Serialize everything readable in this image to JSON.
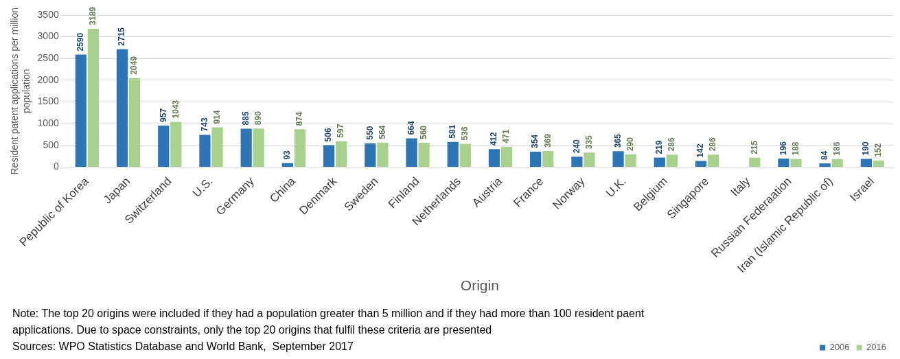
{
  "chart_data": {
    "type": "bar",
    "xlabel": "Origin",
    "ylabel": "Resident patent applications per million population",
    "categories": [
      "Pepublic of Korea",
      "Japan",
      "Switzerland",
      "U.S.",
      "Germany",
      "China",
      "Denmark",
      "Sweden",
      "Finland",
      "Netherlands",
      "Austria",
      "France",
      "Norway",
      "U.K.",
      "Belgium",
      "Singapore",
      "Italy",
      "Russian Federaation",
      "Iran (Islamic Republic of)",
      "Israel"
    ],
    "series": [
      {
        "name": "2006",
        "color": "#2e75b6",
        "values": [
          2590,
          2715,
          957,
          743,
          885,
          93,
          506,
          550,
          664,
          581,
          412,
          354,
          240,
          365,
          219,
          142,
          null,
          196,
          84,
          190
        ]
      },
      {
        "name": "2016",
        "color": "#a9d18e",
        "values": [
          3189,
          2049,
          1043,
          914,
          890,
          874,
          597,
          564,
          560,
          536,
          471,
          369,
          335,
          290,
          286,
          286,
          215,
          188,
          186,
          152
        ]
      }
    ],
    "ylim": [
      0,
      3500
    ],
    "yticks": [
      0,
      500,
      1000,
      1500,
      2000,
      2500,
      3000,
      3500
    ],
    "grid": "y",
    "legend": "bottom right",
    "data_labels": true,
    "annotations": [
      "Note: The top 20 origins were included if they had a population greater than 5 million and if they had more than 100 resident paent applications. Due to space constraints, only the top 20 origins that fulfil these criteria are presented",
      "Sources: WPO Statistics Database and World Bank,  September 2017"
    ]
  }
}
